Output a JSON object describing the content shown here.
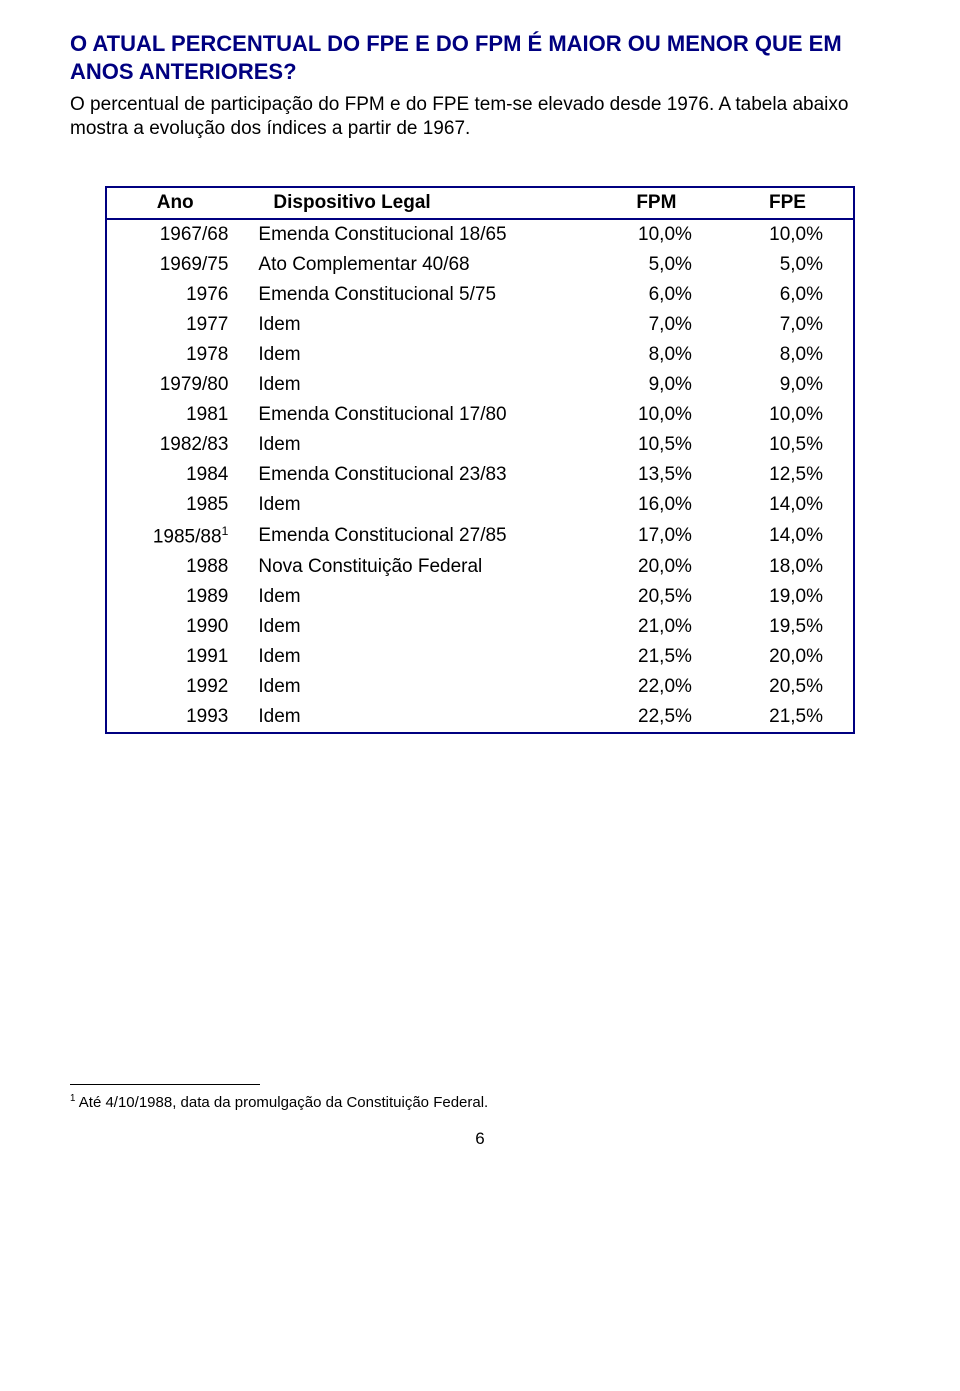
{
  "heading": "O ATUAL PERCENTUAL DO FPE E DO FPM É MAIOR OU MENOR QUE EM ANOS ANTERIORES?",
  "intro": "O percentual de participação do FPM e do FPE tem-se elevado desde 1976. A tabela abaixo mostra a evolução dos índices a partir de 1967.",
  "table": {
    "headers": {
      "year": "Ano",
      "leg": "Dispositivo Legal",
      "fpm": "FPM",
      "fpe": "FPE"
    },
    "rows": [
      {
        "year": "1967/68",
        "leg": "Emenda Constitucional 18/65",
        "fpm": "10,0%",
        "fpe": "10,0%",
        "sup": ""
      },
      {
        "year": "1969/75",
        "leg": "Ato Complementar 40/68",
        "fpm": "5,0%",
        "fpe": "5,0%",
        "sup": ""
      },
      {
        "year": "1976",
        "leg": "Emenda Constitucional 5/75",
        "fpm": "6,0%",
        "fpe": "6,0%",
        "sup": ""
      },
      {
        "year": "1977",
        "leg": "Idem",
        "fpm": "7,0%",
        "fpe": "7,0%",
        "sup": ""
      },
      {
        "year": "1978",
        "leg": "Idem",
        "fpm": "8,0%",
        "fpe": "8,0%",
        "sup": ""
      },
      {
        "year": "1979/80",
        "leg": "Idem",
        "fpm": "9,0%",
        "fpe": "9,0%",
        "sup": ""
      },
      {
        "year": "1981",
        "leg": "Emenda Constitucional 17/80",
        "fpm": "10,0%",
        "fpe": "10,0%",
        "sup": ""
      },
      {
        "year": "1982/83",
        "leg": "Idem",
        "fpm": "10,5%",
        "fpe": "10,5%",
        "sup": ""
      },
      {
        "year": "1984",
        "leg": "Emenda Constitucional 23/83",
        "fpm": "13,5%",
        "fpe": "12,5%",
        "sup": ""
      },
      {
        "year": "1985",
        "leg": "Idem",
        "fpm": "16,0%",
        "fpe": "14,0%",
        "sup": ""
      },
      {
        "year": "1985/88",
        "leg": "Emenda Constitucional 27/85",
        "fpm": "17,0%",
        "fpe": "14,0%",
        "sup": "1"
      },
      {
        "year": "1988",
        "leg": "Nova Constituição Federal",
        "fpm": "20,0%",
        "fpe": "18,0%",
        "sup": ""
      },
      {
        "year": "1989",
        "leg": "Idem",
        "fpm": "20,5%",
        "fpe": "19,0%",
        "sup": ""
      },
      {
        "year": "1990",
        "leg": "Idem",
        "fpm": "21,0%",
        "fpe": "19,5%",
        "sup": ""
      },
      {
        "year": "1991",
        "leg": "Idem",
        "fpm": "21,5%",
        "fpe": "20,0%",
        "sup": ""
      },
      {
        "year": "1992",
        "leg": "Idem",
        "fpm": "22,0%",
        "fpe": "20,5%",
        "sup": ""
      },
      {
        "year": "1993",
        "leg": "Idem",
        "fpm": "22,5%",
        "fpe": "21,5%",
        "sup": ""
      }
    ]
  },
  "footnote_marker": "1",
  "footnote_text": " Até 4/10/1988, data da promulgação da Constituição Federal.",
  "page_number": "6"
}
